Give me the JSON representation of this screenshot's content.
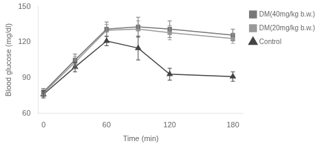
{
  "chart_data": {
    "type": "line",
    "x": [
      0,
      30,
      60,
      90,
      120,
      180
    ],
    "series": [
      {
        "name": "DM(40mg/kg b.w.)",
        "color": "#777777",
        "marker": "square",
        "values": [
          78,
          105,
          131,
          133,
          131,
          126
        ],
        "errors": [
          3,
          5,
          6,
          8,
          7,
          5
        ]
      },
      {
        "name": "DM(20mg/kg b.w.)",
        "color": "#999999",
        "marker": "square",
        "values": [
          77,
          103,
          130,
          131,
          128,
          123
        ],
        "errors": [
          3,
          5,
          5,
          7,
          6,
          4
        ]
      },
      {
        "name": "Control",
        "color": "#444444",
        "marker": "triangle",
        "values": [
          76,
          99,
          121,
          115,
          93,
          91
        ],
        "errors": [
          3,
          4,
          4,
          10,
          5,
          4
        ]
      }
    ],
    "xlabel": "Time (min)",
    "ylabel": "Blood glucose (mg/dl)",
    "xlim": [
      -5,
      190
    ],
    "xticks": [
      0,
      60,
      120,
      180
    ],
    "ylim": [
      60,
      150
    ],
    "yticks": [
      60,
      90,
      120,
      150
    ],
    "grid": false,
    "legend": "right"
  }
}
